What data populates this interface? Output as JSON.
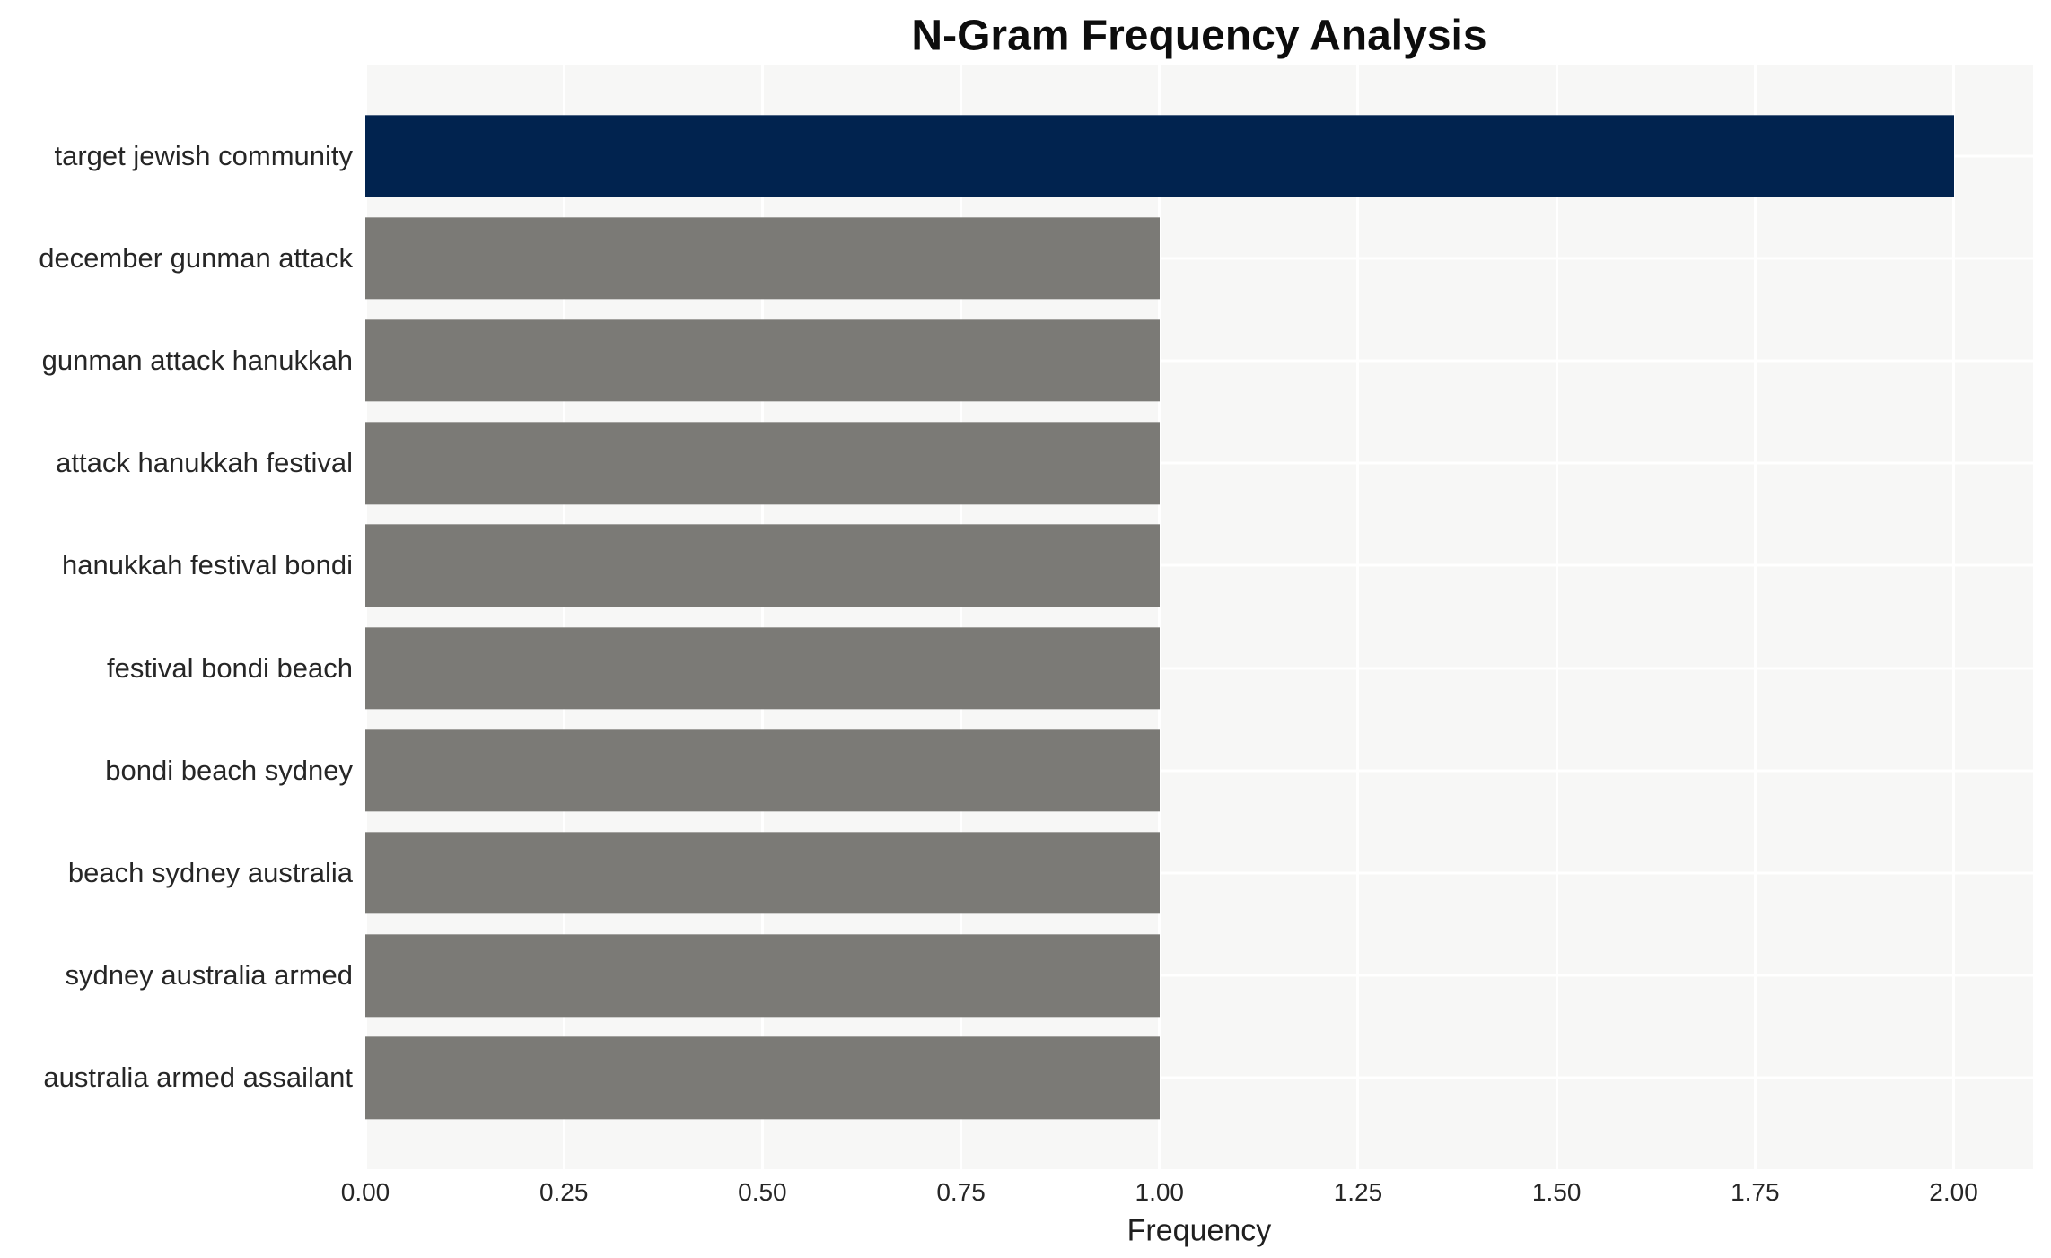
{
  "chart_data": {
    "type": "bar",
    "orientation": "horizontal",
    "title": "N-Gram Frequency Analysis",
    "xlabel": "Frequency",
    "ylabel": "",
    "categories": [
      "target jewish community",
      "december gunman attack",
      "gunman attack hanukkah",
      "attack hanukkah festival",
      "hanukkah festival bondi",
      "festival bondi beach",
      "bondi beach sydney",
      "beach sydney australia",
      "sydney australia armed",
      "australia armed assailant"
    ],
    "values": [
      2,
      1,
      1,
      1,
      1,
      1,
      1,
      1,
      1,
      1
    ],
    "bar_colors": [
      "#01234f",
      "#7b7a76",
      "#7b7a76",
      "#7b7a76",
      "#7b7a76",
      "#7b7a76",
      "#7b7a76",
      "#7b7a76",
      "#7b7a76",
      "#7b7a76"
    ],
    "xlim": [
      0,
      2.1
    ],
    "xticks": [
      0.0,
      0.25,
      0.5,
      0.75,
      1.0,
      1.25,
      1.5,
      1.75,
      2.0
    ],
    "xtick_labels": [
      "0.00",
      "0.25",
      "0.50",
      "0.75",
      "1.00",
      "1.25",
      "1.50",
      "1.75",
      "2.00"
    ],
    "grid": true,
    "legend": null,
    "colors": {
      "highlight_bar": "#01234f",
      "default_bar": "#7b7a76",
      "plot_background": "#f7f7f6",
      "gridline": "#ffffff",
      "text": "#262626",
      "title_text": "#0d0d0d"
    }
  }
}
